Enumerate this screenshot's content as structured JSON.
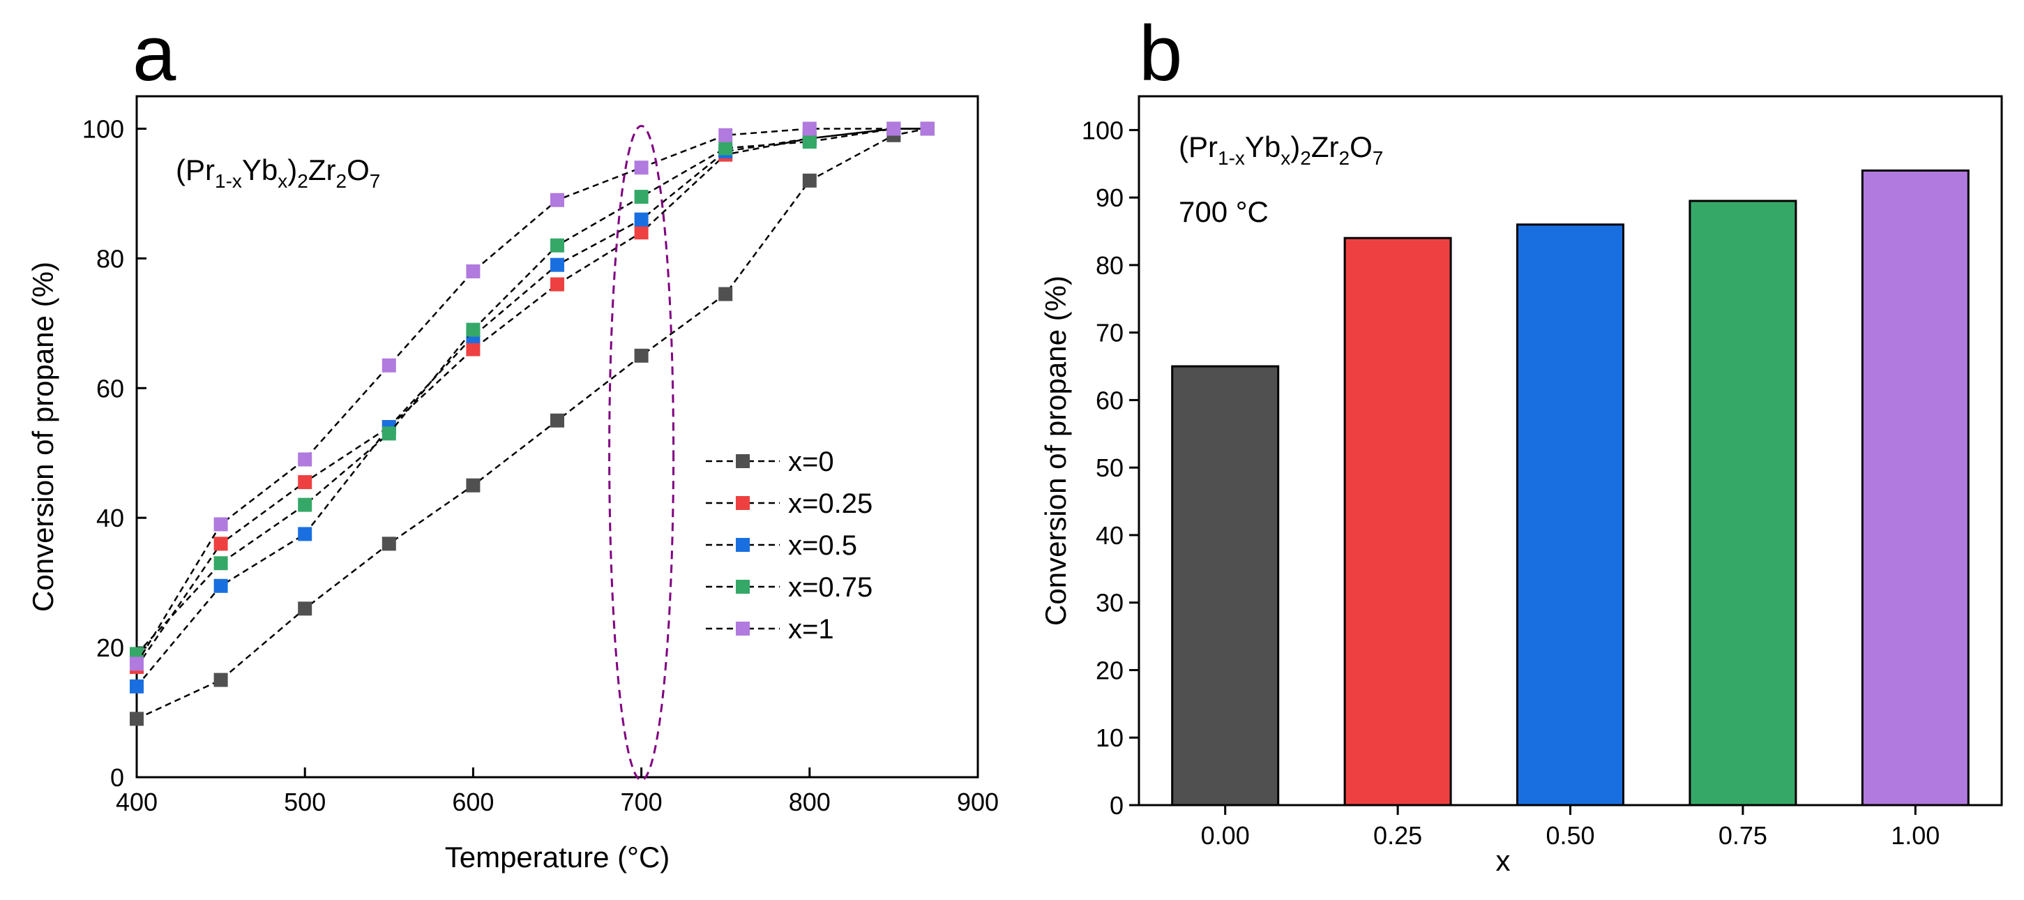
{
  "chart_data": [
    {
      "panel_label": "a",
      "type": "line",
      "annotation": {
        "main_1": "(Pr",
        "sub_1": "1-x",
        "main_2": "Yb",
        "sub_2": "x",
        "main_3": ")",
        "sub_3": "2",
        "main_4": "Zr",
        "sub_4": "2",
        "main_5": "O",
        "sub_5": "7"
      },
      "xlabel": "Temperature (°C)",
      "ylabel": "Conversion of propane (%)",
      "xlim": [
        400,
        900
      ],
      "ylim": [
        0,
        105
      ],
      "xticks": [
        400,
        500,
        600,
        700,
        800,
        900
      ],
      "yticks": [
        0,
        20,
        40,
        60,
        80,
        100
      ],
      "grid": false,
      "legend_position": "center-right",
      "highlight": {
        "shape": "dashed ellipse",
        "x": 700,
        "y_range": [
          0,
          100
        ],
        "color": "#800080"
      },
      "series": [
        {
          "name": "x=0",
          "color": "#505050",
          "x": [
            400,
            450,
            500,
            550,
            600,
            650,
            700,
            750,
            800,
            850,
            870
          ],
          "values": [
            9,
            15,
            26,
            36,
            45,
            55,
            65,
            74.5,
            92,
            99,
            100
          ]
        },
        {
          "name": "x=0.25",
          "color": "#ee4040",
          "x": [
            400,
            450,
            500,
            550,
            600,
            650,
            700,
            750,
            800,
            850,
            870
          ],
          "values": [
            17,
            36,
            45.5,
            54,
            66,
            76,
            84,
            96,
            98.5,
            100,
            100
          ]
        },
        {
          "name": "x=0.5",
          "color": "#1a6fe0",
          "x": [
            400,
            450,
            500,
            550,
            600,
            650,
            700,
            750,
            800,
            850,
            870
          ],
          "values": [
            14,
            29.5,
            37.5,
            54,
            68,
            79,
            86,
            96.5,
            98.5,
            100,
            100
          ]
        },
        {
          "name": "x=0.75",
          "color": "#35a868",
          "x": [
            400,
            450,
            500,
            550,
            600,
            650,
            700,
            750,
            800,
            850,
            870
          ],
          "values": [
            19,
            33,
            42,
            53,
            69,
            82,
            89.5,
            97,
            98,
            100,
            100
          ]
        },
        {
          "name": "x=1",
          "color": "#b07ade",
          "x": [
            400,
            450,
            500,
            550,
            600,
            650,
            700,
            750,
            800,
            850,
            870
          ],
          "values": [
            17.5,
            39,
            49,
            63.5,
            78,
            89,
            94,
            99,
            100,
            100,
            100
          ]
        }
      ]
    },
    {
      "panel_label": "b",
      "type": "bar",
      "annotation": {
        "main_1": "(Pr",
        "sub_1": "1-x",
        "main_2": "Yb",
        "sub_2": "x",
        "main_3": ")",
        "sub_3": "2",
        "main_4": "Zr",
        "sub_4": "2",
        "main_5": "O",
        "sub_5": "7"
      },
      "annotation_2": "700 °C",
      "xlabel": "x",
      "ylabel": "Conversion of propane (%)",
      "categories": [
        "0.00",
        "0.25",
        "0.50",
        "0.75",
        "1.00"
      ],
      "values": [
        65,
        84,
        86,
        89.5,
        94
      ],
      "colors": [
        "#505050",
        "#ee4040",
        "#1a6fe0",
        "#35a868",
        "#b07ade"
      ],
      "ylim": [
        0,
        105
      ],
      "yticks": [
        0,
        10,
        20,
        30,
        40,
        50,
        60,
        70,
        80,
        90,
        100
      ],
      "grid": false
    }
  ]
}
